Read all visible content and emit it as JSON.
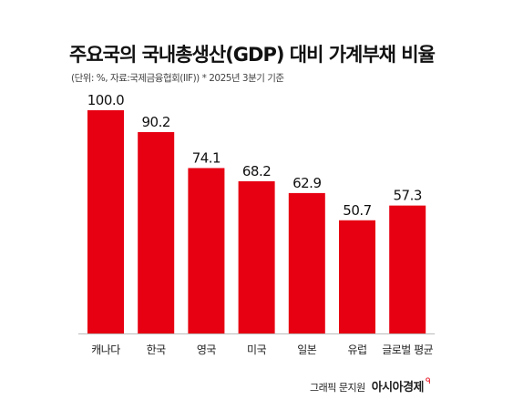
{
  "chart_data": {
    "type": "bar",
    "title": "주요국의 국내총생산(GDP) 대비 가계부채 비율",
    "subtitle": "(단위: %, 자료:국제금융협회(IIF))  * 2025년 3분기 기준",
    "categories": [
      "캐나다",
      "한국",
      "영국",
      "미국",
      "일본",
      "유럽",
      "글로벌 평균"
    ],
    "values": [
      100.0,
      90.2,
      74.1,
      68.2,
      62.9,
      50.7,
      57.3
    ],
    "value_labels": [
      "100.0",
      "90.2",
      "74.1",
      "68.2",
      "62.9",
      "50.7",
      "57.3"
    ],
    "ylim": [
      0,
      100
    ],
    "xlabel": "",
    "ylabel": "",
    "grid": false,
    "bar_color": "#e60012"
  },
  "footer": {
    "credit": "그래픽 문지원",
    "brand": "아시아경제",
    "brand_mark_color": "#e60012"
  }
}
